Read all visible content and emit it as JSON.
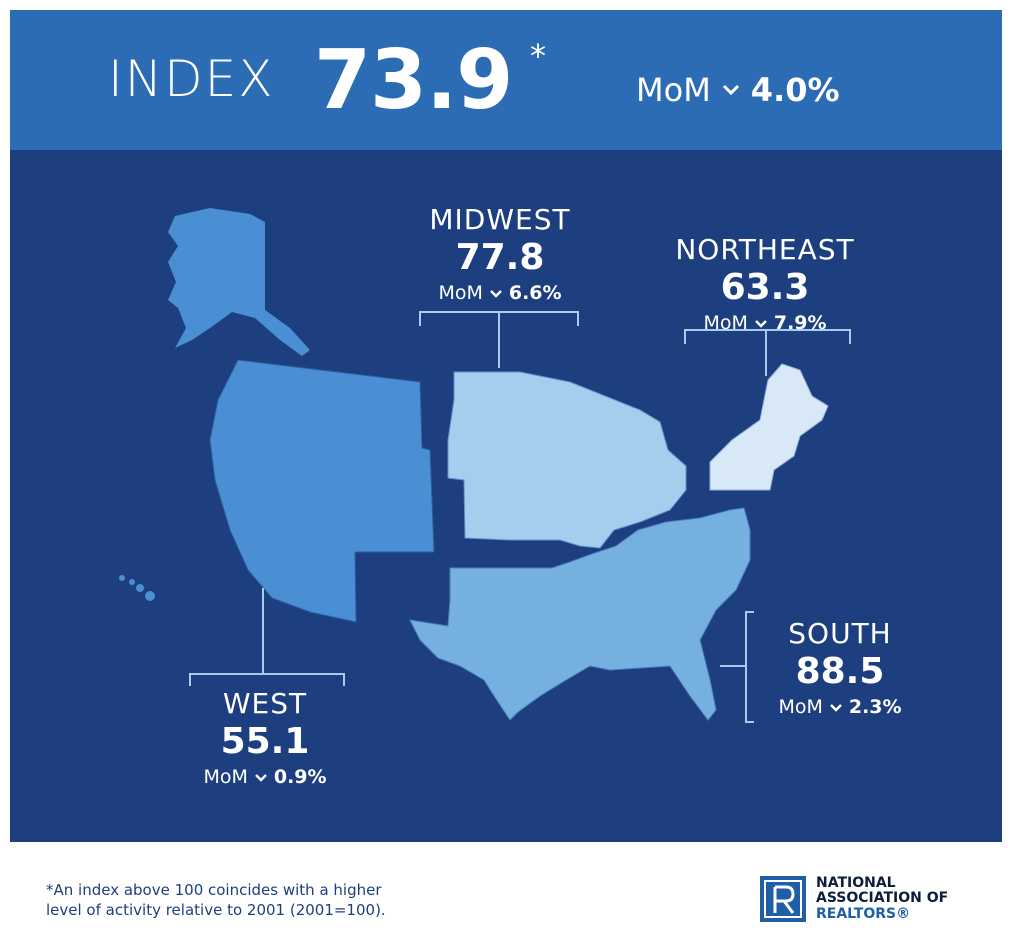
{
  "header": {
    "index_label": "INDEX",
    "index_value": "73.9",
    "asterisk": "*",
    "mom_label": "MoM",
    "mom_change": "4.0%",
    "direction_icon": "chevron-down-icon"
  },
  "regions": {
    "midwest": {
      "name": "MIDWEST",
      "value": "77.8",
      "mom_label": "MoM",
      "mom_change": "6.6%"
    },
    "northeast": {
      "name": "NORTHEAST",
      "value": "63.3",
      "mom_label": "MoM",
      "mom_change": "7.9%"
    },
    "south": {
      "name": "SOUTH",
      "value": "88.5",
      "mom_label": "MoM",
      "mom_change": "2.3%"
    },
    "west": {
      "name": "WEST",
      "value": "55.1",
      "mom_label": "MoM",
      "mom_change": "0.9%"
    }
  },
  "colors": {
    "header_bg": "#2b6cb4",
    "map_bg": "#1d3f7f",
    "west": "#4a8fd3",
    "south": "#76b0e1",
    "midwest": "#a4cdee",
    "northeast": "#d8e8f7"
  },
  "footnote": {
    "line1": "*An index above 100 coincides with a higher",
    "line2": "level of activity relative to 2001 (2001=100)."
  },
  "logo": {
    "line1": "NATIONAL",
    "line2": "ASSOCIATION OF",
    "line3": "REALTORS®"
  }
}
